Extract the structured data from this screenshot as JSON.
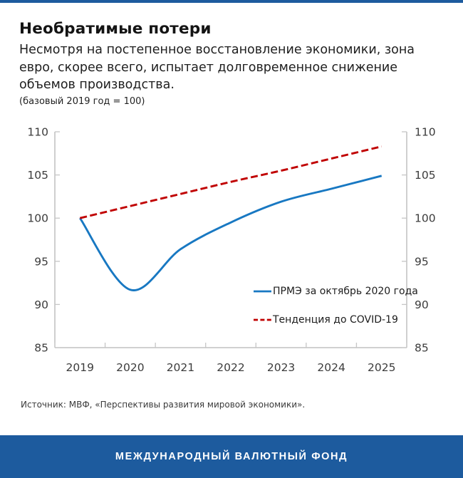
{
  "colors": {
    "imf_blue": "#1d5b9e",
    "line_blue": "#1878c2",
    "line_red": "#c00000",
    "axis_line": "#b5b5b5",
    "axis_tick": "#c6c6c6",
    "axis_label": "#3c3c3c"
  },
  "header": {
    "title": "Необратимые потери",
    "subtitle_lines": [
      "Несмотря на постепенное восстановление экономики, зона",
      "евро, скорее всего, испытает долговременное снижение",
      "объемов производства."
    ],
    "note": "(базовый 2019 год = 100)"
  },
  "chart_data": {
    "type": "line",
    "title": "",
    "xlabel": "",
    "ylabel": "",
    "categories": [
      "2019",
      "2020",
      "2021",
      "2022",
      "2023",
      "2024",
      "2025"
    ],
    "series": [
      {
        "name": "ПРМЭ за октябрь 2020 года",
        "style": "solid",
        "color": "#1878c2",
        "values": [
          100,
          91.7,
          96.4,
          99.5,
          101.9,
          103.4,
          104.9
        ]
      },
      {
        "name": "Тенденция до COVID-19",
        "style": "dashed",
        "color": "#c00000",
        "values": [
          100,
          101.4,
          102.8,
          104.2,
          105.5,
          106.9,
          108.3
        ]
      }
    ],
    "ylim": [
      85,
      110
    ],
    "yticks": [
      110,
      105,
      100,
      95,
      90,
      85
    ],
    "y_axis_sides": "both",
    "grid": false,
    "legend_position": "inside-lower-right"
  },
  "footer": {
    "source": "Источник: МВФ, «Перспективы развития мировой экономики».",
    "bar_text": "МЕЖДУНАРОДНЫЙ ВАЛЮТНЫЙ ФОНД"
  }
}
